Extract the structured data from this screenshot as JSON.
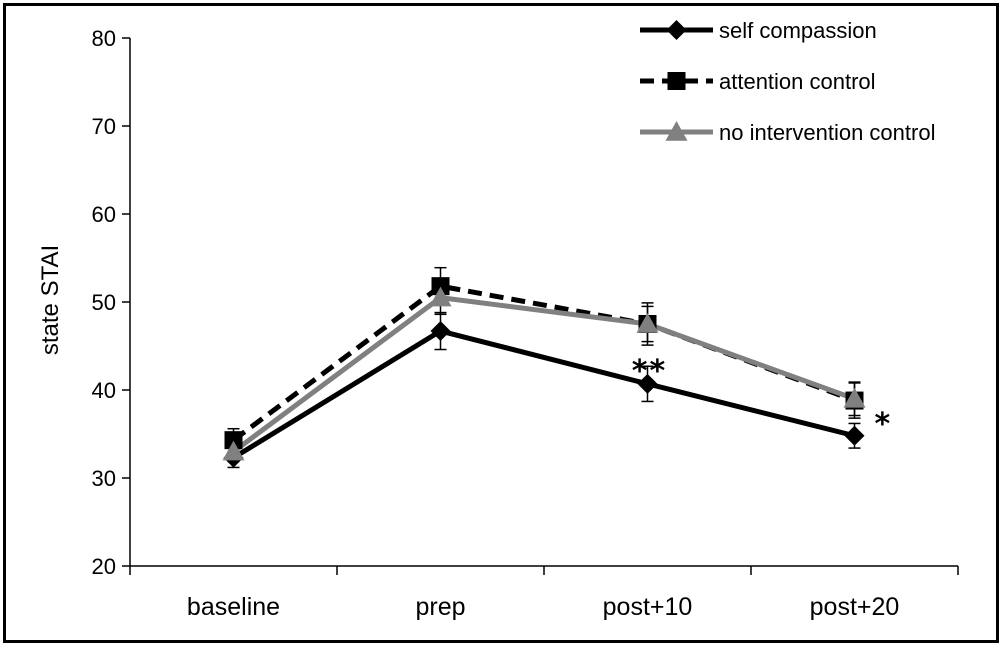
{
  "chart_data": {
    "type": "line",
    "title": "",
    "xlabel": "",
    "ylabel": "state  STAI",
    "categories": [
      "baseline",
      "prep",
      "post+10",
      "post+20"
    ],
    "ylim": [
      20,
      80
    ],
    "yticks": [
      20,
      30,
      40,
      50,
      60,
      70,
      80
    ],
    "grid": false,
    "legend_position": "top-right",
    "series": [
      {
        "name": "self compassion",
        "values": [
          32.3,
          46.7,
          40.7,
          34.8
        ],
        "error": [
          1.1,
          2.1,
          2.0,
          1.4
        ],
        "color": "#000000",
        "line_style": "solid",
        "marker": "diamond"
      },
      {
        "name": "attention control",
        "values": [
          34.3,
          51.8,
          47.5,
          38.8
        ],
        "error": [
          1.3,
          2.1,
          2.4,
          2.0
        ],
        "color": "#000000",
        "line_style": "dashed",
        "marker": "square"
      },
      {
        "name": "no intervention control",
        "values": [
          33.0,
          50.5,
          47.5,
          39.0
        ],
        "error": [
          1.1,
          1.9,
          2.0,
          1.9
        ],
        "color": "#808080",
        "line_style": "solid",
        "marker": "triangle"
      }
    ],
    "annotations": [
      {
        "category": "post+10",
        "value": 43.5,
        "text": "**"
      },
      {
        "category": "post+20",
        "value": 37.5,
        "text": "*"
      }
    ]
  }
}
